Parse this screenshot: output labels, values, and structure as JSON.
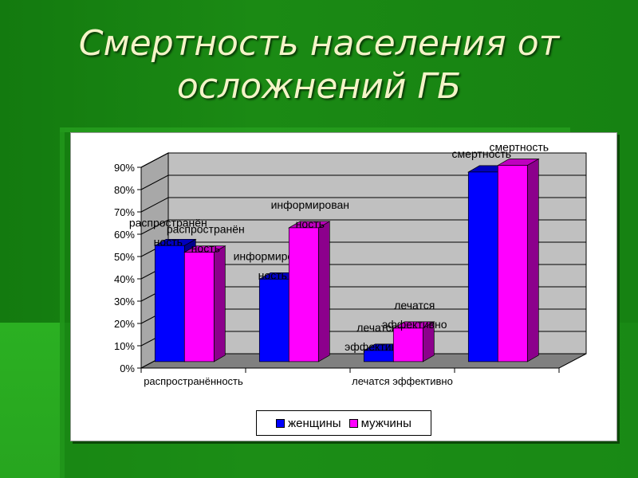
{
  "slide": {
    "title_line1": "Смертность населения от",
    "title_line2": "осложнений ГБ"
  },
  "colors": {
    "series_women": "#0000ff",
    "series_men": "#ff00ff",
    "wall": "#c0c0c0",
    "floor": "#808080"
  },
  "chart_data": {
    "type": "bar",
    "style": "3d-clustered-column",
    "categories": [
      "распространённость",
      "информированность",
      "лечатся эффективно",
      "смертность"
    ],
    "x_tick_labels": [
      "распространённость",
      "лечатся эффективно"
    ],
    "series": [
      {
        "name": "женщины",
        "values": [
          0.52,
          0.37,
          0.05,
          0.85
        ]
      },
      {
        "name": "мужчины",
        "values": [
          0.49,
          0.6,
          0.15,
          0.88
        ]
      }
    ],
    "data_labels": [
      [
        "распространëн\nность",
        "информирован\nность",
        "лечатся\nэффективно",
        "смертность"
      ],
      [
        "распространëн\nность",
        "информирован\nность",
        "лечатся\nэффективно",
        "смертность"
      ]
    ],
    "y_ticks": [
      "0%",
      "10%",
      "20%",
      "30%",
      "40%",
      "50%",
      "60%",
      "70%",
      "80%",
      "90%"
    ],
    "ylim": [
      0,
      0.9
    ],
    "grid": true,
    "legend_position": "bottom"
  }
}
